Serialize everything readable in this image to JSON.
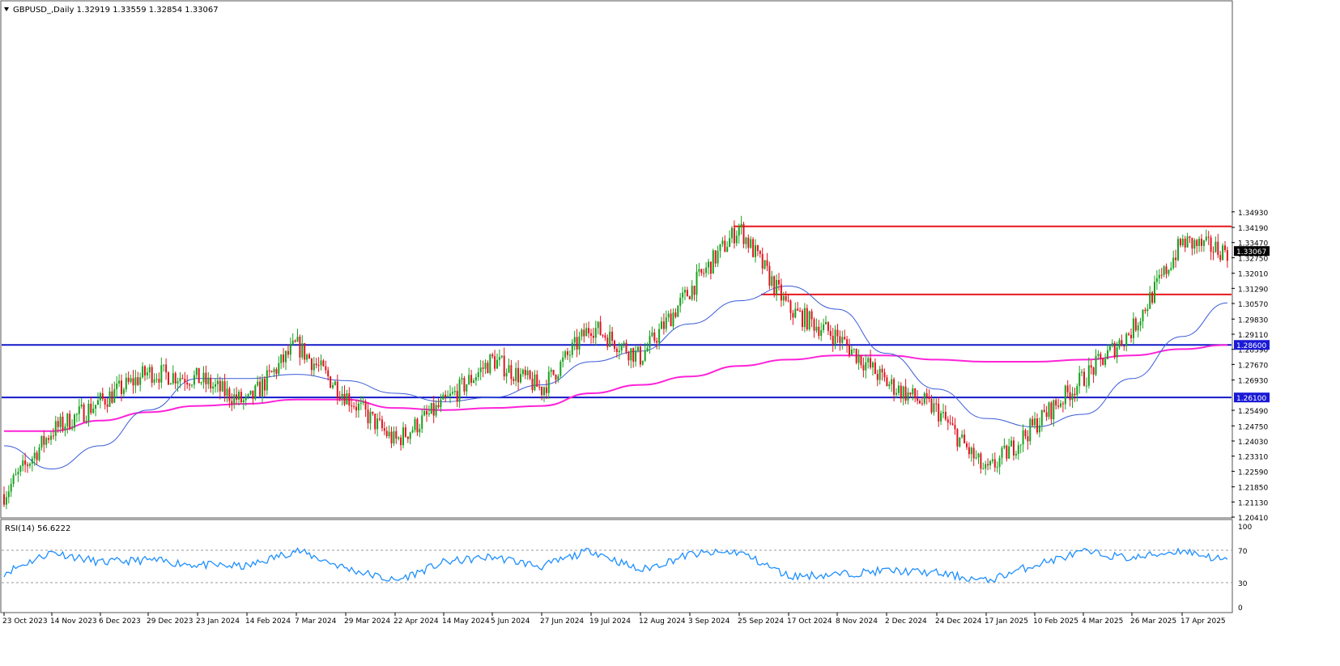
{
  "header": {
    "symbol_line": "GBPUSD_,Daily  1.32919 1.33559 1.32854 1.33067"
  },
  "rsi_panel": {
    "label": "RSI(14) 56.6222",
    "ticks": [
      "100",
      "70",
      "30",
      "0"
    ]
  },
  "colors": {
    "bull": "#18a11e",
    "bear": "#e0141e",
    "ma_fast": "#3a5bd9",
    "ma_slow": "#ff22d8",
    "resistance": "#e8161c",
    "support": "#1218c8",
    "rsi": "#1e8fff",
    "grid": "#9a9a9a",
    "label_blue_bg": "#1a1ad6",
    "label_black_bg": "#000000"
  },
  "chart_data": {
    "type": "candlestick",
    "price_ticks": [
      "1.34930",
      "1.34190",
      "1.33470",
      "1.32750",
      "1.32010",
      "1.31290",
      "1.30570",
      "1.29830",
      "1.29110",
      "1.28390",
      "1.27670",
      "1.26930",
      "1.25490",
      "1.24750",
      "1.24030",
      "1.23310",
      "1.22590",
      "1.21850",
      "1.21130",
      "1.20410"
    ],
    "ylim": [
      1.2041,
      1.4493
    ],
    "dates": [
      "23 Oct 2023",
      "14 Nov 2023",
      "6 Dec 2023",
      "29 Dec 2023",
      "23 Jan 2024",
      "14 Feb 2024",
      "7 Mar 2024",
      "29 Mar 2024",
      "22 Apr 2024",
      "14 May 2024",
      "5 Jun 2024",
      "27 Jun 2024",
      "19 Jul 2024",
      "12 Aug 2024",
      "3 Sep 2024",
      "25 Sep 2024",
      "17 Oct 2024",
      "8 Nov 2024",
      "2 Dec 2024",
      "24 Dec 2024",
      "17 Jan 2025",
      "10 Feb 2025",
      "4 Mar 2025",
      "26 Mar 2025",
      "17 Apr 2025"
    ],
    "close_anchors": [
      [
        "23 Oct 2023",
        1.215
      ],
      [
        "14 Nov 2023",
        1.245
      ],
      [
        "6 Dec 2023",
        1.259
      ],
      [
        "29 Dec 2023",
        1.273
      ],
      [
        "23 Jan 2024",
        1.27
      ],
      [
        "14 Feb 2024",
        1.258
      ],
      [
        "7 Mar 2024",
        1.286
      ],
      [
        "29 Mar 2024",
        1.262
      ],
      [
        "22 Apr 2024",
        1.24
      ],
      [
        "14 May 2024",
        1.258
      ],
      [
        "5 Jun 2024",
        1.279
      ],
      [
        "27 Jun 2024",
        1.265
      ],
      [
        "19 Jul 2024",
        1.295
      ],
      [
        "12 Aug 2024",
        1.28
      ],
      [
        "3 Sep 2024",
        1.312
      ],
      [
        "25 Sep 2024",
        1.342
      ],
      [
        "17 Oct 2024",
        1.303
      ],
      [
        "8 Nov 2024",
        1.29
      ],
      [
        "2 Dec 2024",
        1.268
      ],
      [
        "24 Dec 2024",
        1.255
      ],
      [
        "17 Jan 2025",
        1.225
      ],
      [
        "10 Feb 2025",
        1.248
      ],
      [
        "4 Mar 2025",
        1.27
      ],
      [
        "26 Mar 2025",
        1.293
      ],
      [
        "17 Apr 2025",
        1.335
      ],
      [
        "last",
        1.33067
      ]
    ],
    "last_ohlc": {
      "open": 1.32919,
      "high": 1.33559,
      "low": 1.32854,
      "close": 1.33067
    },
    "series": [
      {
        "name": "resistance",
        "value": 1.3424,
        "color": "#e8161c"
      },
      {
        "name": "resistance",
        "value": 1.31,
        "color": "#e8161c"
      },
      {
        "name": "support",
        "value": 1.286,
        "label": "1.28600",
        "color": "#1218c8"
      },
      {
        "name": "support",
        "value": 1.261,
        "label": "1.26100",
        "color": "#1218c8"
      }
    ],
    "current_price_label": "1.33067",
    "ma_fast_anchors": [
      [
        "23 Oct 2023",
        1.238
      ],
      [
        "14 Nov 2023",
        1.227
      ],
      [
        "6 Dec 2023",
        1.238
      ],
      [
        "29 Dec 2023",
        1.255
      ],
      [
        "23 Jan 2024",
        1.27
      ],
      [
        "14 Feb 2024",
        1.27
      ],
      [
        "7 Mar 2024",
        1.272
      ],
      [
        "29 Mar 2024",
        1.269
      ],
      [
        "22 Apr 2024",
        1.263
      ],
      [
        "14 May 2024",
        1.259
      ],
      [
        "5 Jun 2024",
        1.261
      ],
      [
        "27 Jun 2024",
        1.267
      ],
      [
        "19 Jul 2024",
        1.278
      ],
      [
        "12 Aug 2024",
        1.283
      ],
      [
        "3 Sep 2024",
        1.296
      ],
      [
        "25 Sep 2024",
        1.307
      ],
      [
        "17 Oct 2024",
        1.314
      ],
      [
        "8 Nov 2024",
        1.303
      ],
      [
        "2 Dec 2024",
        1.282
      ],
      [
        "24 Dec 2024",
        1.265
      ],
      [
        "17 Jan 2025",
        1.251
      ],
      [
        "10 Feb 2025",
        1.247
      ],
      [
        "4 Mar 2025",
        1.253
      ],
      [
        "26 Mar 2025",
        1.27
      ],
      [
        "17 Apr 2025",
        1.29
      ],
      [
        "last",
        1.306
      ]
    ],
    "ma_slow_anchors": [
      [
        "23 Oct 2023",
        1.245
      ],
      [
        "14 Nov 2023",
        1.245
      ],
      [
        "6 Dec 2023",
        1.25
      ],
      [
        "29 Dec 2023",
        1.254
      ],
      [
        "23 Jan 2024",
        1.257
      ],
      [
        "14 Feb 2024",
        1.258
      ],
      [
        "7 Mar 2024",
        1.26
      ],
      [
        "29 Mar 2024",
        1.26
      ],
      [
        "22 Apr 2024",
        1.256
      ],
      [
        "14 May 2024",
        1.255
      ],
      [
        "5 Jun 2024",
        1.256
      ],
      [
        "27 Jun 2024",
        1.257
      ],
      [
        "19 Jul 2024",
        1.263
      ],
      [
        "12 Aug 2024",
        1.267
      ],
      [
        "3 Sep 2024",
        1.271
      ],
      [
        "25 Sep 2024",
        1.276
      ],
      [
        "17 Oct 2024",
        1.279
      ],
      [
        "8 Nov 2024",
        1.281
      ],
      [
        "2 Dec 2024",
        1.281
      ],
      [
        "24 Dec 2024",
        1.279
      ],
      [
        "17 Jan 2025",
        1.278
      ],
      [
        "10 Feb 2025",
        1.278
      ],
      [
        "4 Mar 2025",
        1.279
      ],
      [
        "26 Mar 2025",
        1.281
      ],
      [
        "17 Apr 2025",
        1.284
      ],
      [
        "last",
        1.286
      ]
    ],
    "rsi": {
      "ylim": [
        0,
        100
      ],
      "levels": [
        70,
        30
      ],
      "anchors": [
        [
          "23 Oct 2023",
          42
        ],
        [
          "14 Nov 2023",
          68
        ],
        [
          "6 Dec 2023",
          55
        ],
        [
          "29 Dec 2023",
          58
        ],
        [
          "23 Jan 2024",
          52
        ],
        [
          "14 Feb 2024",
          50
        ],
        [
          "7 Mar 2024",
          70
        ],
        [
          "29 Mar 2024",
          48
        ],
        [
          "22 Apr 2024",
          32
        ],
        [
          "14 May 2024",
          55
        ],
        [
          "5 Jun 2024",
          62
        ],
        [
          "27 Jun 2024",
          50
        ],
        [
          "19 Jul 2024",
          70
        ],
        [
          "12 Aug 2024",
          45
        ],
        [
          "3 Sep 2024",
          65
        ],
        [
          "25 Sep 2024",
          68
        ],
        [
          "17 Oct 2024",
          38
        ],
        [
          "8 Nov 2024",
          40
        ],
        [
          "2 Dec 2024",
          45
        ],
        [
          "24 Dec 2024",
          42
        ],
        [
          "17 Jan 2025",
          32
        ],
        [
          "10 Feb 2025",
          52
        ],
        [
          "4 Mar 2025",
          68
        ],
        [
          "26 Mar 2025",
          60
        ],
        [
          "17 Apr 2025",
          70
        ],
        [
          "last",
          56.6222
        ]
      ]
    }
  }
}
